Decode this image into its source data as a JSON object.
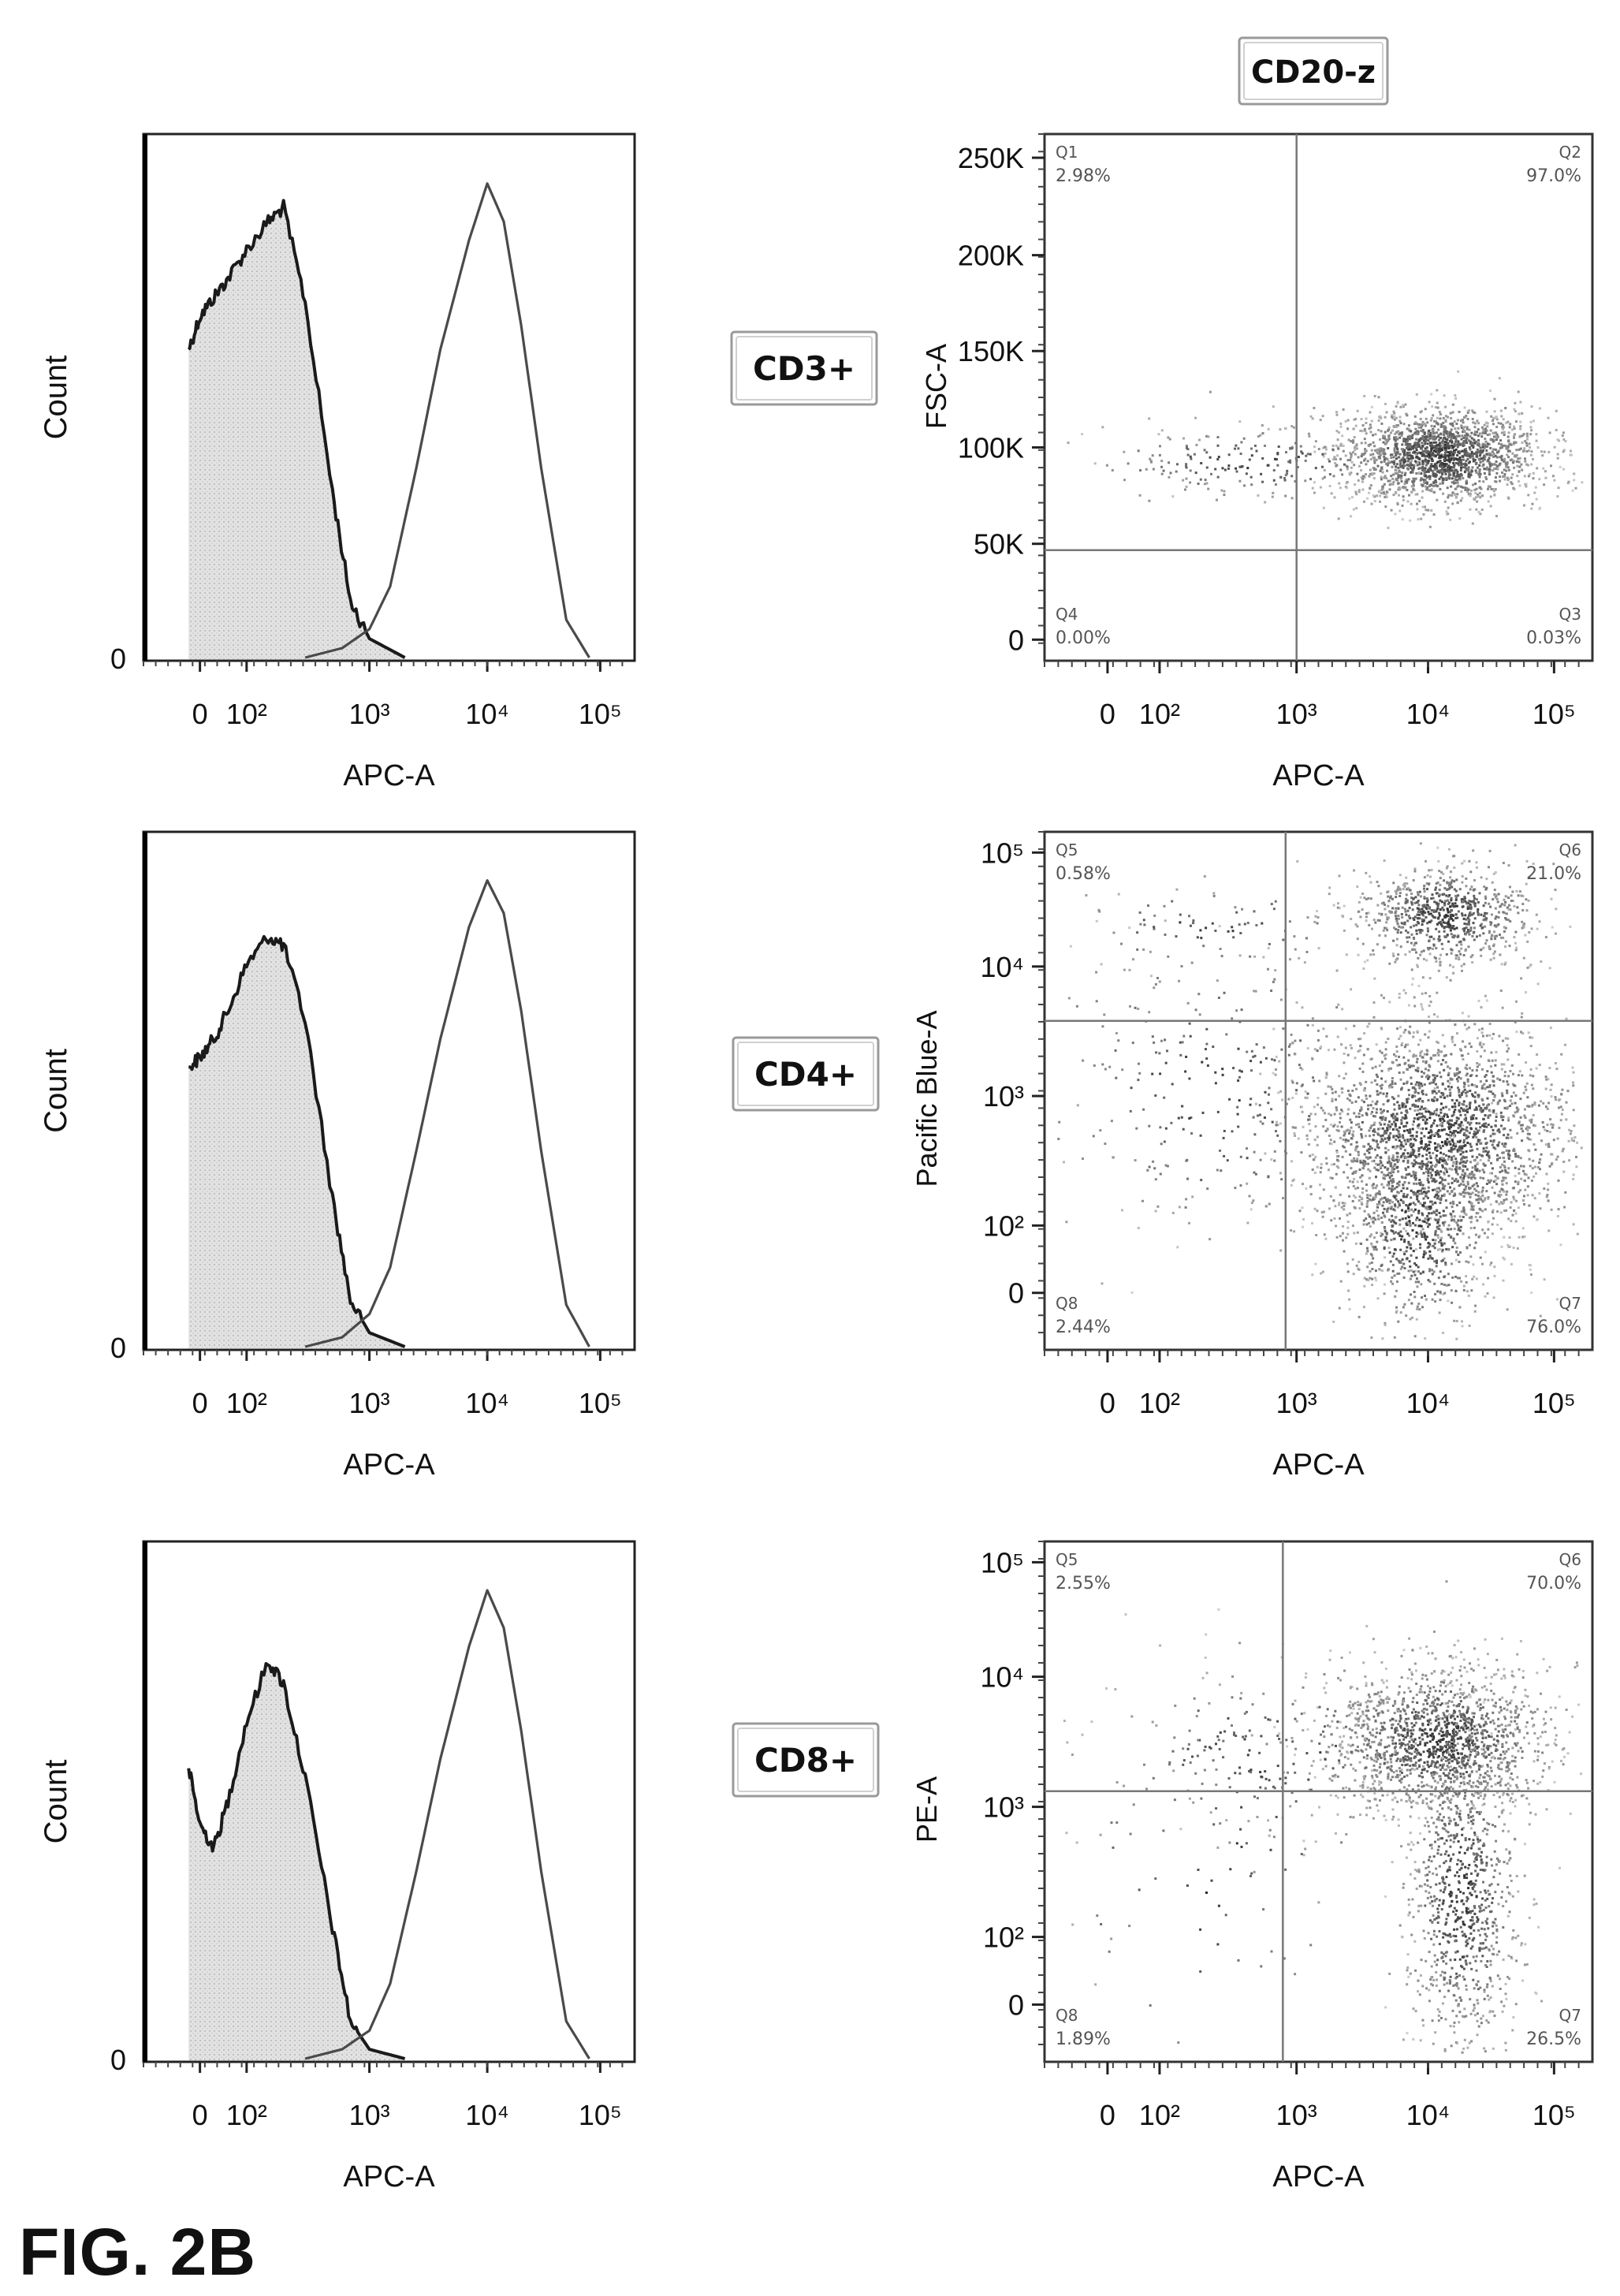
{
  "figure_label": "FIG. 2B",
  "header_label": "CD20-z",
  "row_labels": [
    "CD3+",
    "CD4+",
    "CD8+"
  ],
  "chart_data": [
    {
      "type": "histogram",
      "panel": "CD3+ histogram",
      "xlabel": "APC-A",
      "ylabel": "Count",
      "x_tick_labels": [
        "0",
        "10²",
        "10³",
        "10⁴",
        "10⁵"
      ],
      "y_tick_labels": [
        "0"
      ],
      "x_scale": "biexponential",
      "series": [
        {
          "fill": "#d9d9d9",
          "x": [
            -100,
            0,
            30,
            60,
            100,
            150,
            200,
            300,
            500,
            700,
            1000,
            2000
          ],
          "y": [
            0.65,
            0.72,
            0.76,
            0.8,
            0.86,
            0.92,
            0.95,
            0.75,
            0.35,
            0.12,
            0.04,
            0
          ]
        },
        {
          "x": [
            300,
            600,
            1000,
            1500,
            2500,
            4000,
            7000,
            10000,
            14000,
            20000,
            30000,
            50000,
            80000
          ],
          "y": [
            0,
            0.02,
            0.06,
            0.15,
            0.4,
            0.65,
            0.88,
            1.0,
            0.92,
            0.7,
            0.4,
            0.08,
            0
          ]
        }
      ]
    },
    {
      "type": "scatter",
      "panel": "CD3+ dot plot",
      "xlabel": "APC-A",
      "ylabel": "FSC-A",
      "x_tick_labels": [
        "0",
        "10²",
        "10³",
        "10⁴",
        "10⁵"
      ],
      "y_tick_labels": [
        "0",
        "50K",
        "100K",
        "150K",
        "200K",
        "250K"
      ],
      "ylim": [
        0,
        262144
      ],
      "quadrants": [
        {
          "name": "Q1",
          "value": "2.98%"
        },
        {
          "name": "Q2",
          "value": "97.0%"
        },
        {
          "name": "Q3",
          "value": "0.03%"
        },
        {
          "name": "Q4",
          "value": "0.00%"
        }
      ]
    },
    {
      "type": "histogram",
      "panel": "CD4+ histogram",
      "xlabel": "APC-A",
      "ylabel": "Count",
      "x_tick_labels": [
        "0",
        "10²",
        "10³",
        "10⁴",
        "10⁵"
      ],
      "y_tick_labels": [
        "0"
      ],
      "x_scale": "biexponential",
      "series": [
        {
          "fill": "#d9d9d9",
          "x": [
            -100,
            0,
            30,
            60,
            100,
            150,
            200,
            300,
            500,
            700,
            1000,
            2000
          ],
          "y": [
            0.6,
            0.62,
            0.66,
            0.72,
            0.82,
            0.88,
            0.86,
            0.7,
            0.32,
            0.1,
            0.03,
            0
          ]
        },
        {
          "x": [
            300,
            600,
            1000,
            1500,
            2500,
            4000,
            7000,
            10000,
            14000,
            20000,
            30000,
            50000,
            80000
          ],
          "y": [
            0,
            0.02,
            0.07,
            0.17,
            0.42,
            0.66,
            0.9,
            1.0,
            0.93,
            0.72,
            0.42,
            0.09,
            0
          ]
        }
      ]
    },
    {
      "type": "scatter",
      "panel": "CD4+ dot plot",
      "xlabel": "APC-A",
      "ylabel": "Pacific Blue-A",
      "x_tick_labels": [
        "0",
        "10²",
        "10³",
        "10⁴",
        "10⁵"
      ],
      "y_tick_labels": [
        "0",
        "10²",
        "10³",
        "10⁴",
        "10⁵"
      ],
      "quadrants": [
        {
          "name": "Q5",
          "value": "0.58%"
        },
        {
          "name": "Q6",
          "value": "21.0%"
        },
        {
          "name": "Q7",
          "value": "76.0%"
        },
        {
          "name": "Q8",
          "value": "2.44%"
        }
      ]
    },
    {
      "type": "histogram",
      "panel": "CD8+ histogram",
      "xlabel": "APC-A",
      "ylabel": "Count",
      "x_tick_labels": [
        "0",
        "10²",
        "10³",
        "10⁴",
        "10⁵"
      ],
      "y_tick_labels": [
        "0"
      ],
      "x_scale": "biexponential",
      "series": [
        {
          "fill": "#d9d9d9",
          "x": [
            -100,
            0,
            30,
            60,
            100,
            150,
            200,
            300,
            500,
            700,
            1000,
            2000
          ],
          "y": [
            0.62,
            0.5,
            0.45,
            0.55,
            0.72,
            0.85,
            0.8,
            0.6,
            0.28,
            0.08,
            0.02,
            0
          ]
        },
        {
          "x": [
            300,
            600,
            1000,
            1500,
            2500,
            4000,
            7000,
            10000,
            14000,
            20000,
            30000,
            50000,
            80000
          ],
          "y": [
            0,
            0.02,
            0.06,
            0.16,
            0.4,
            0.64,
            0.88,
            1.0,
            0.92,
            0.7,
            0.4,
            0.08,
            0
          ]
        }
      ]
    },
    {
      "type": "scatter",
      "panel": "CD8+ dot plot",
      "xlabel": "APC-A",
      "ylabel": "PE-A",
      "x_tick_labels": [
        "0",
        "10²",
        "10³",
        "10⁴",
        "10⁵"
      ],
      "y_tick_labels": [
        "0",
        "10²",
        "10³",
        "10⁴",
        "10⁵"
      ],
      "quadrants": [
        {
          "name": "Q5",
          "value": "2.55%"
        },
        {
          "name": "Q6",
          "value": "70.0%"
        },
        {
          "name": "Q7",
          "value": "26.5%"
        },
        {
          "name": "Q8",
          "value": "1.89%"
        }
      ]
    }
  ]
}
